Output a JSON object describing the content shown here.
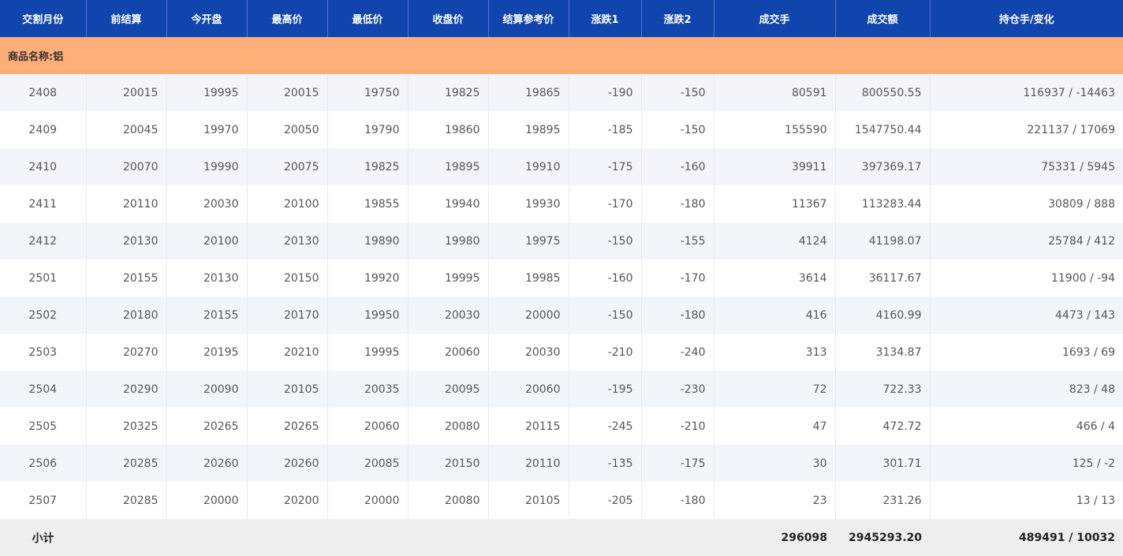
{
  "columns": [
    "交割月份",
    "前结算",
    "今开盘",
    "最高价",
    "最低价",
    "收盘价",
    "结算参考价",
    "涨跌1",
    "涨跌2",
    "成交手",
    "成交额",
    "持仓手/变化"
  ],
  "category_label": "商品名称:铝",
  "rows": [
    [
      "2408",
      "20015",
      "19995",
      "20015",
      "19750",
      "19825",
      "19865",
      "-190",
      "-150",
      "80591",
      "800550.55",
      "116937 / -14463"
    ],
    [
      "2409",
      "20045",
      "19970",
      "20050",
      "19790",
      "19860",
      "19895",
      "-185",
      "-150",
      "155590",
      "1547750.44",
      "221137 / 17069"
    ],
    [
      "2410",
      "20070",
      "19990",
      "20075",
      "19825",
      "19895",
      "19910",
      "-175",
      "-160",
      "39911",
      "397369.17",
      "75331 / 5945"
    ],
    [
      "2411",
      "20110",
      "20030",
      "20100",
      "19855",
      "19940",
      "19930",
      "-170",
      "-180",
      "11367",
      "113283.44",
      "30809 / 888"
    ],
    [
      "2412",
      "20130",
      "20100",
      "20130",
      "19890",
      "19980",
      "19975",
      "-150",
      "-155",
      "4124",
      "41198.07",
      "25784 / 412"
    ],
    [
      "2501",
      "20155",
      "20130",
      "20150",
      "19920",
      "19995",
      "19985",
      "-160",
      "-170",
      "3614",
      "36117.67",
      "11900 / -94"
    ],
    [
      "2502",
      "20180",
      "20155",
      "20170",
      "19950",
      "20030",
      "20000",
      "-150",
      "-180",
      "416",
      "4160.99",
      "4473 / 143"
    ],
    [
      "2503",
      "20270",
      "20195",
      "20210",
      "19995",
      "20060",
      "20030",
      "-210",
      "-240",
      "313",
      "3134.87",
      "1693 / 69"
    ],
    [
      "2504",
      "20290",
      "20090",
      "20105",
      "20035",
      "20095",
      "20060",
      "-195",
      "-230",
      "72",
      "722.33",
      "823 / 48"
    ],
    [
      "2505",
      "20325",
      "20265",
      "20265",
      "20060",
      "20080",
      "20115",
      "-245",
      "-210",
      "47",
      "472.72",
      "466 / 4"
    ],
    [
      "2506",
      "20285",
      "20260",
      "20260",
      "20085",
      "20150",
      "20110",
      "-135",
      "-175",
      "30",
      "301.71",
      "125 / -2"
    ],
    [
      "2507",
      "20285",
      "20000",
      "20200",
      "20000",
      "20080",
      "20105",
      "-205",
      "-180",
      "23",
      "231.26",
      "13 / 13"
    ]
  ],
  "subtotal": {
    "label": "小计",
    "volume": "296098",
    "turnover": "2945293.20",
    "open_interest": "489491 / 10032"
  },
  "colors": {
    "header": "#0f45ad",
    "category": "#ffae78",
    "stripe": "#f2f5fa",
    "subtotal": "#eeeeee"
  }
}
